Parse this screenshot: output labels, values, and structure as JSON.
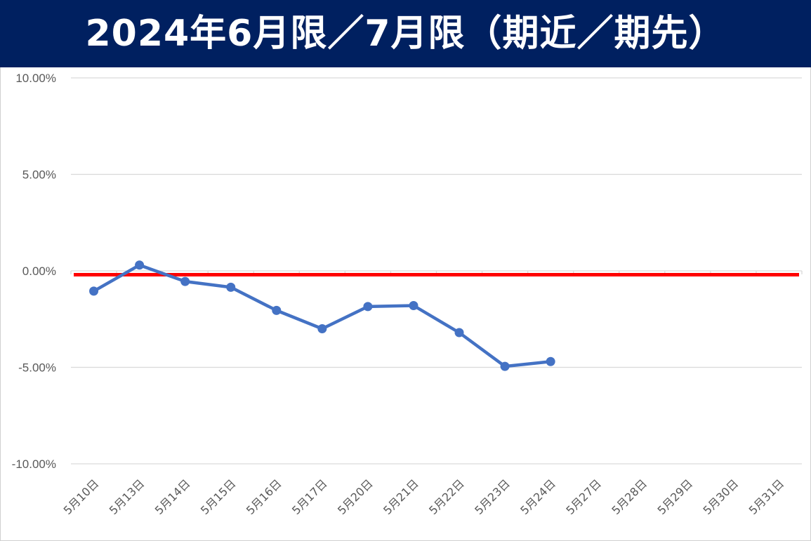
{
  "title": "2024年6月限／7月限（期近／期先）",
  "colors": {
    "title_background": "#002060",
    "title_text": "#ffffff",
    "series_line": "#4472C4",
    "reference_line": "#FF0000",
    "gridline": "#D9D9D9",
    "tick_text": "#595959"
  },
  "chart_data": {
    "type": "line",
    "title": "2024年6月限／7月限（期近／期先）",
    "xlabel": "",
    "ylabel": "",
    "ylim": [
      -10,
      10
    ],
    "y_unit": "percent",
    "yticks": [
      "10.00%",
      "5.00%",
      "0.00%",
      "-5.00%",
      "-10.00%"
    ],
    "ytick_values": [
      10,
      5,
      0,
      -5,
      -10
    ],
    "categories": [
      "5月10日",
      "5月13日",
      "5月14日",
      "5月15日",
      "5月16日",
      "5月17日",
      "5月20日",
      "5月21日",
      "5月22日",
      "5月23日",
      "5月24日",
      "5月27日",
      "5月28日",
      "5月29日",
      "5月30日",
      "5月31日"
    ],
    "series": [
      {
        "values": [
          -1.05,
          0.3,
          -0.55,
          -0.85,
          -2.05,
          -3.0,
          -1.85,
          -1.8,
          -3.2,
          -4.95,
          -4.7,
          null,
          null,
          null,
          null,
          null
        ]
      }
    ],
    "reference_line": {
      "value": -0.2
    },
    "grid": true,
    "legend": "none"
  }
}
